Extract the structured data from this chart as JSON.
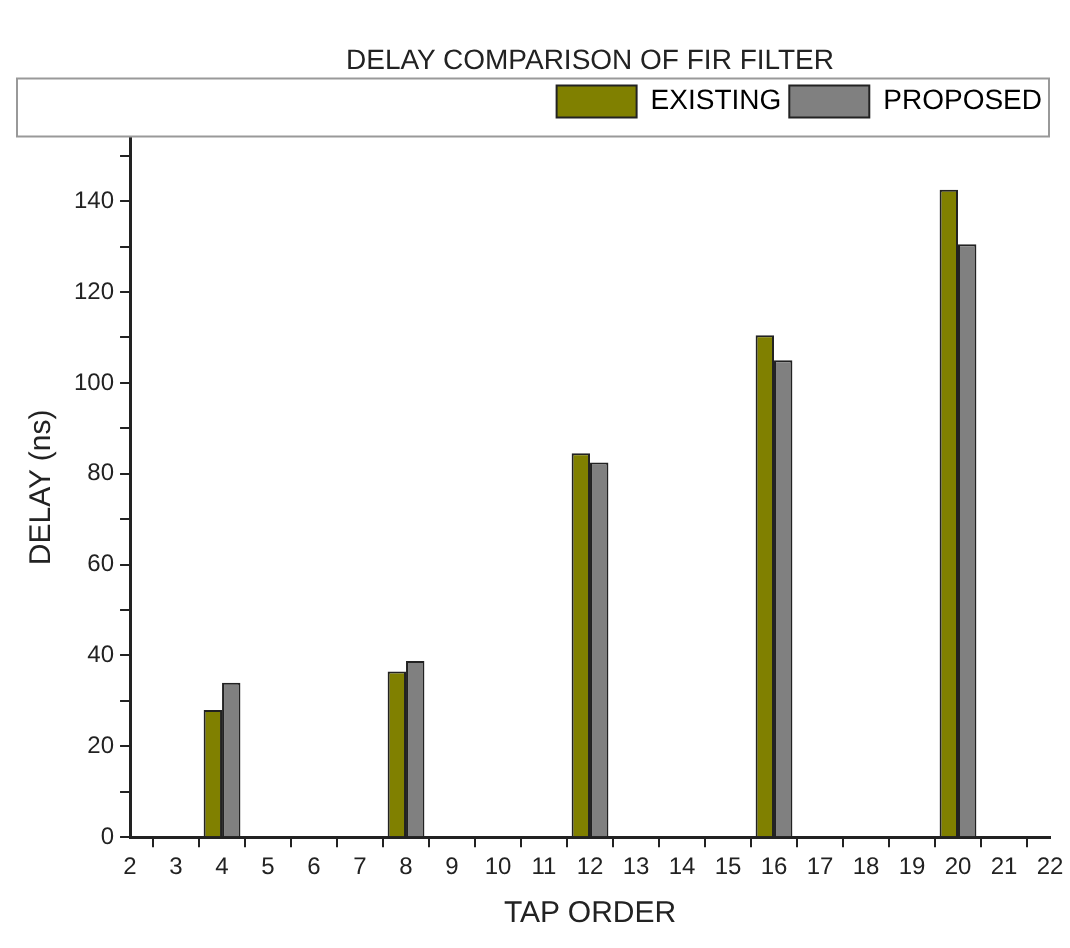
{
  "chart_data": {
    "type": "bar",
    "title": "DELAY COMPARISON OF FIR FILTER",
    "xlabel": "TAP ORDER",
    "ylabel": "DELAY (ns)",
    "x": [
      4,
      8,
      12,
      16,
      20
    ],
    "series": [
      {
        "name": "EXISTING",
        "color": "#808000",
        "values": [
          28,
          36.5,
          84.5,
          110.5,
          142.5
        ]
      },
      {
        "name": "PROPOSED",
        "color": "#808080",
        "values": [
          34,
          38.8,
          82.5,
          105,
          130.5
        ]
      }
    ],
    "xlim": [
      2,
      22
    ],
    "xticks": [
      2,
      3,
      4,
      5,
      6,
      7,
      8,
      9,
      10,
      11,
      12,
      13,
      14,
      15,
      16,
      17,
      18,
      19,
      20,
      21,
      22
    ],
    "ylim": [
      0,
      154
    ],
    "yticks": [
      0,
      {
        "value": 10,
        "label": null
      },
      20,
      {
        "value": 30,
        "label": null
      },
      40,
      {
        "value": 50,
        "label": null
      },
      60,
      {
        "value": 70,
        "label": null
      },
      80,
      {
        "value": 90,
        "label": null
      },
      100,
      {
        "value": 110,
        "label": null
      },
      120,
      {
        "value": 130,
        "label": null
      },
      140,
      {
        "value": 150,
        "label": null
      }
    ],
    "grid": false,
    "legend": "top right"
  }
}
